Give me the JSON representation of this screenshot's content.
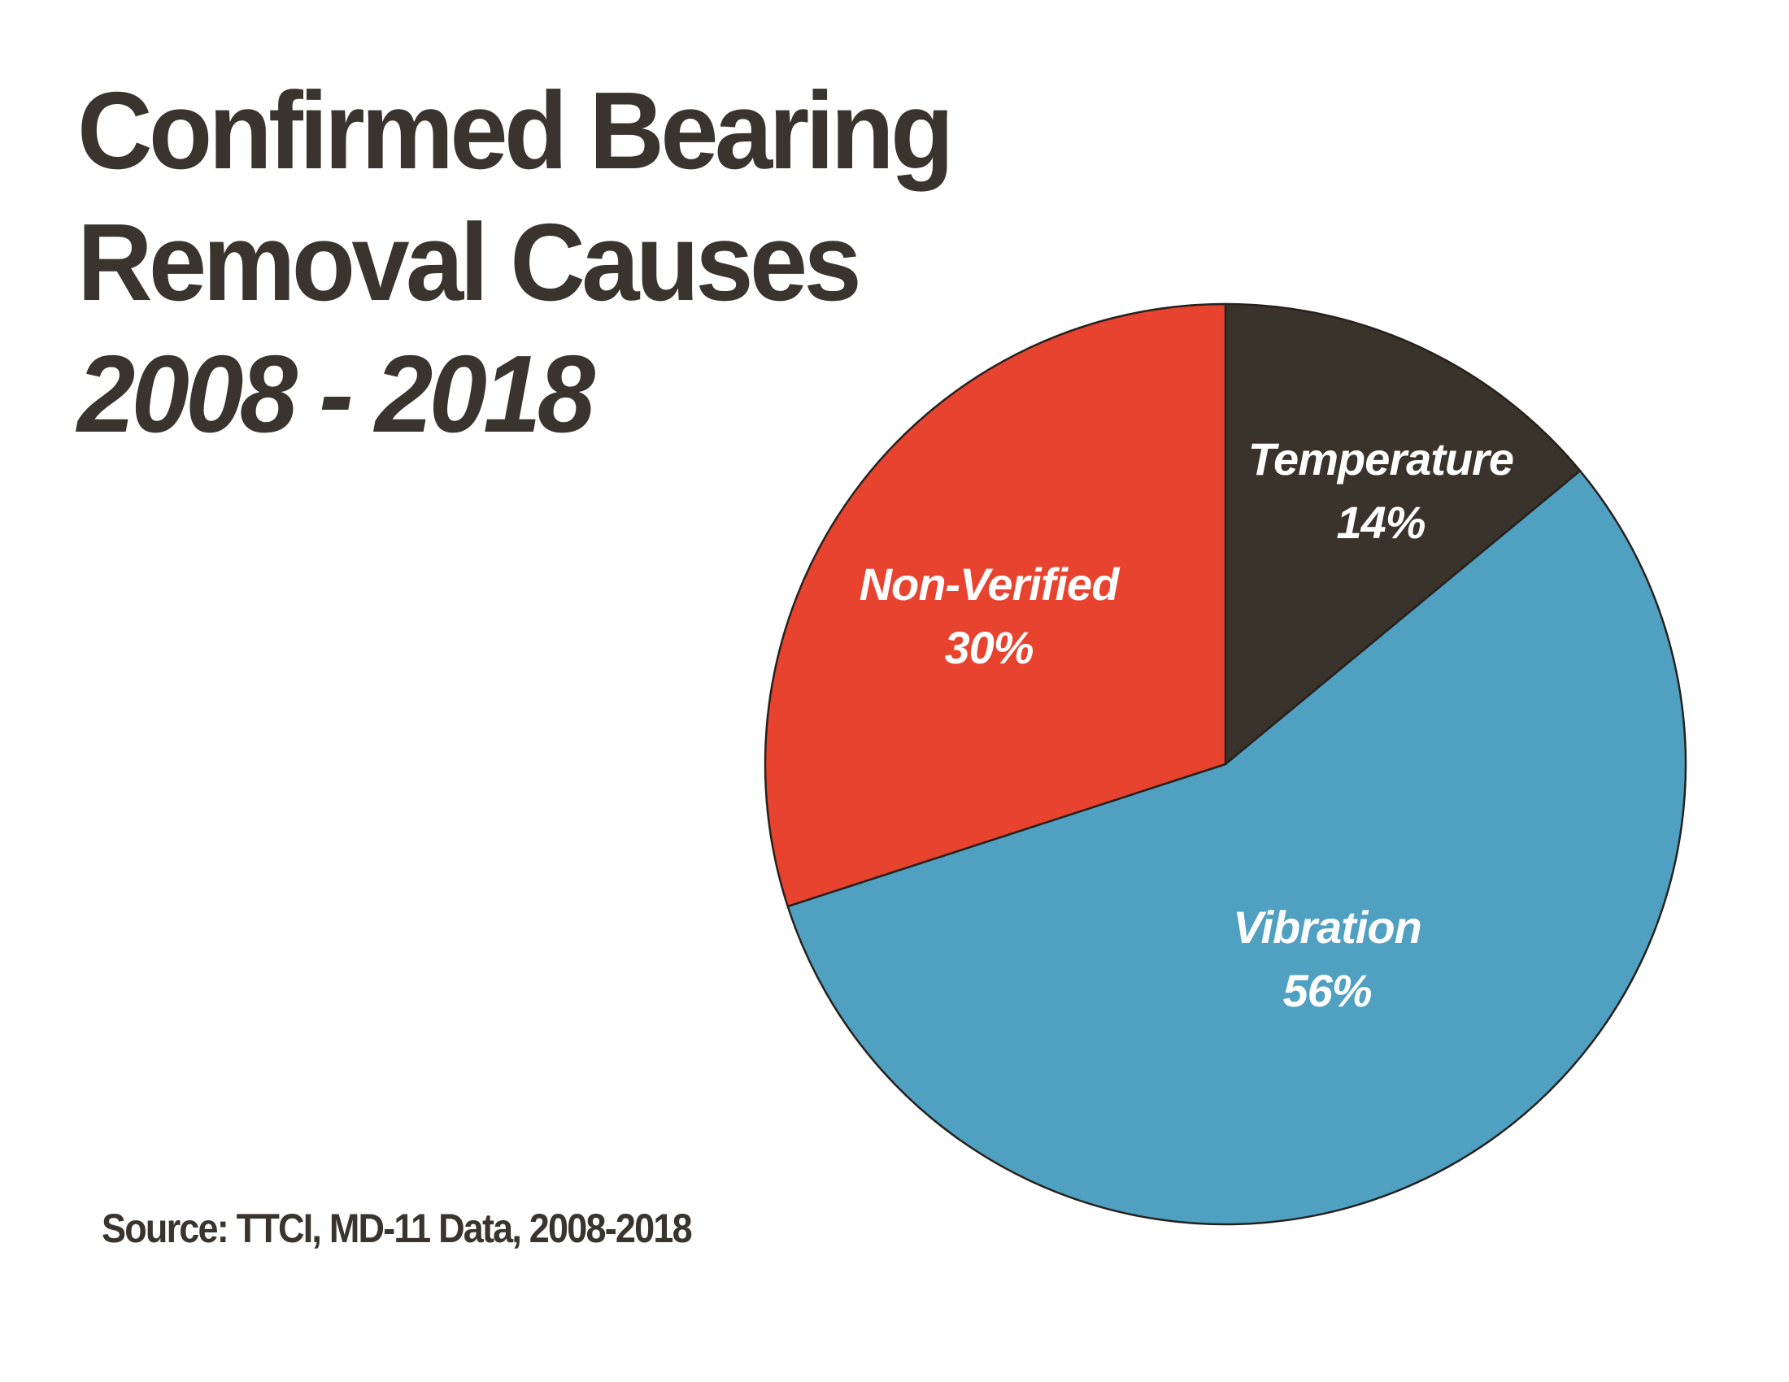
{
  "title": {
    "line1": "Confirmed Bearing",
    "line2": "Removal Causes",
    "line3": "2008 - 2018"
  },
  "source": {
    "text": "Source: TTCI, MD-11 Data, 2008-2018"
  },
  "colors": {
    "background": "#FFFFFF",
    "title_text": "#3A342E",
    "source_text": "#3A342E",
    "pie_outline": "#27211D",
    "label_text": "#FFFFFF"
  },
  "chart_data": {
    "type": "pie",
    "title": "Confirmed Bearing Removal Causes 2008 - 2018",
    "start_angle_deg": 0,
    "direction": "clockwise",
    "total": 100,
    "legend_position": "none",
    "labels_inside": true,
    "slices": [
      {
        "label": "Temperature",
        "value": 14,
        "pct_label": "14%",
        "color": "#3A332C",
        "text_color": "#FFFFFF"
      },
      {
        "label": "Vibration",
        "value": 56,
        "pct_label": "56%",
        "color": "#4FA0C1",
        "text_color": "#FFFFFF"
      },
      {
        "label": "Non-Verified",
        "value": 30,
        "pct_label": "30%",
        "color": "#E8432F",
        "text_color": "#FFFFFF"
      }
    ],
    "source": "Source: TTCI, MD-11 Data, 2008-2018"
  }
}
